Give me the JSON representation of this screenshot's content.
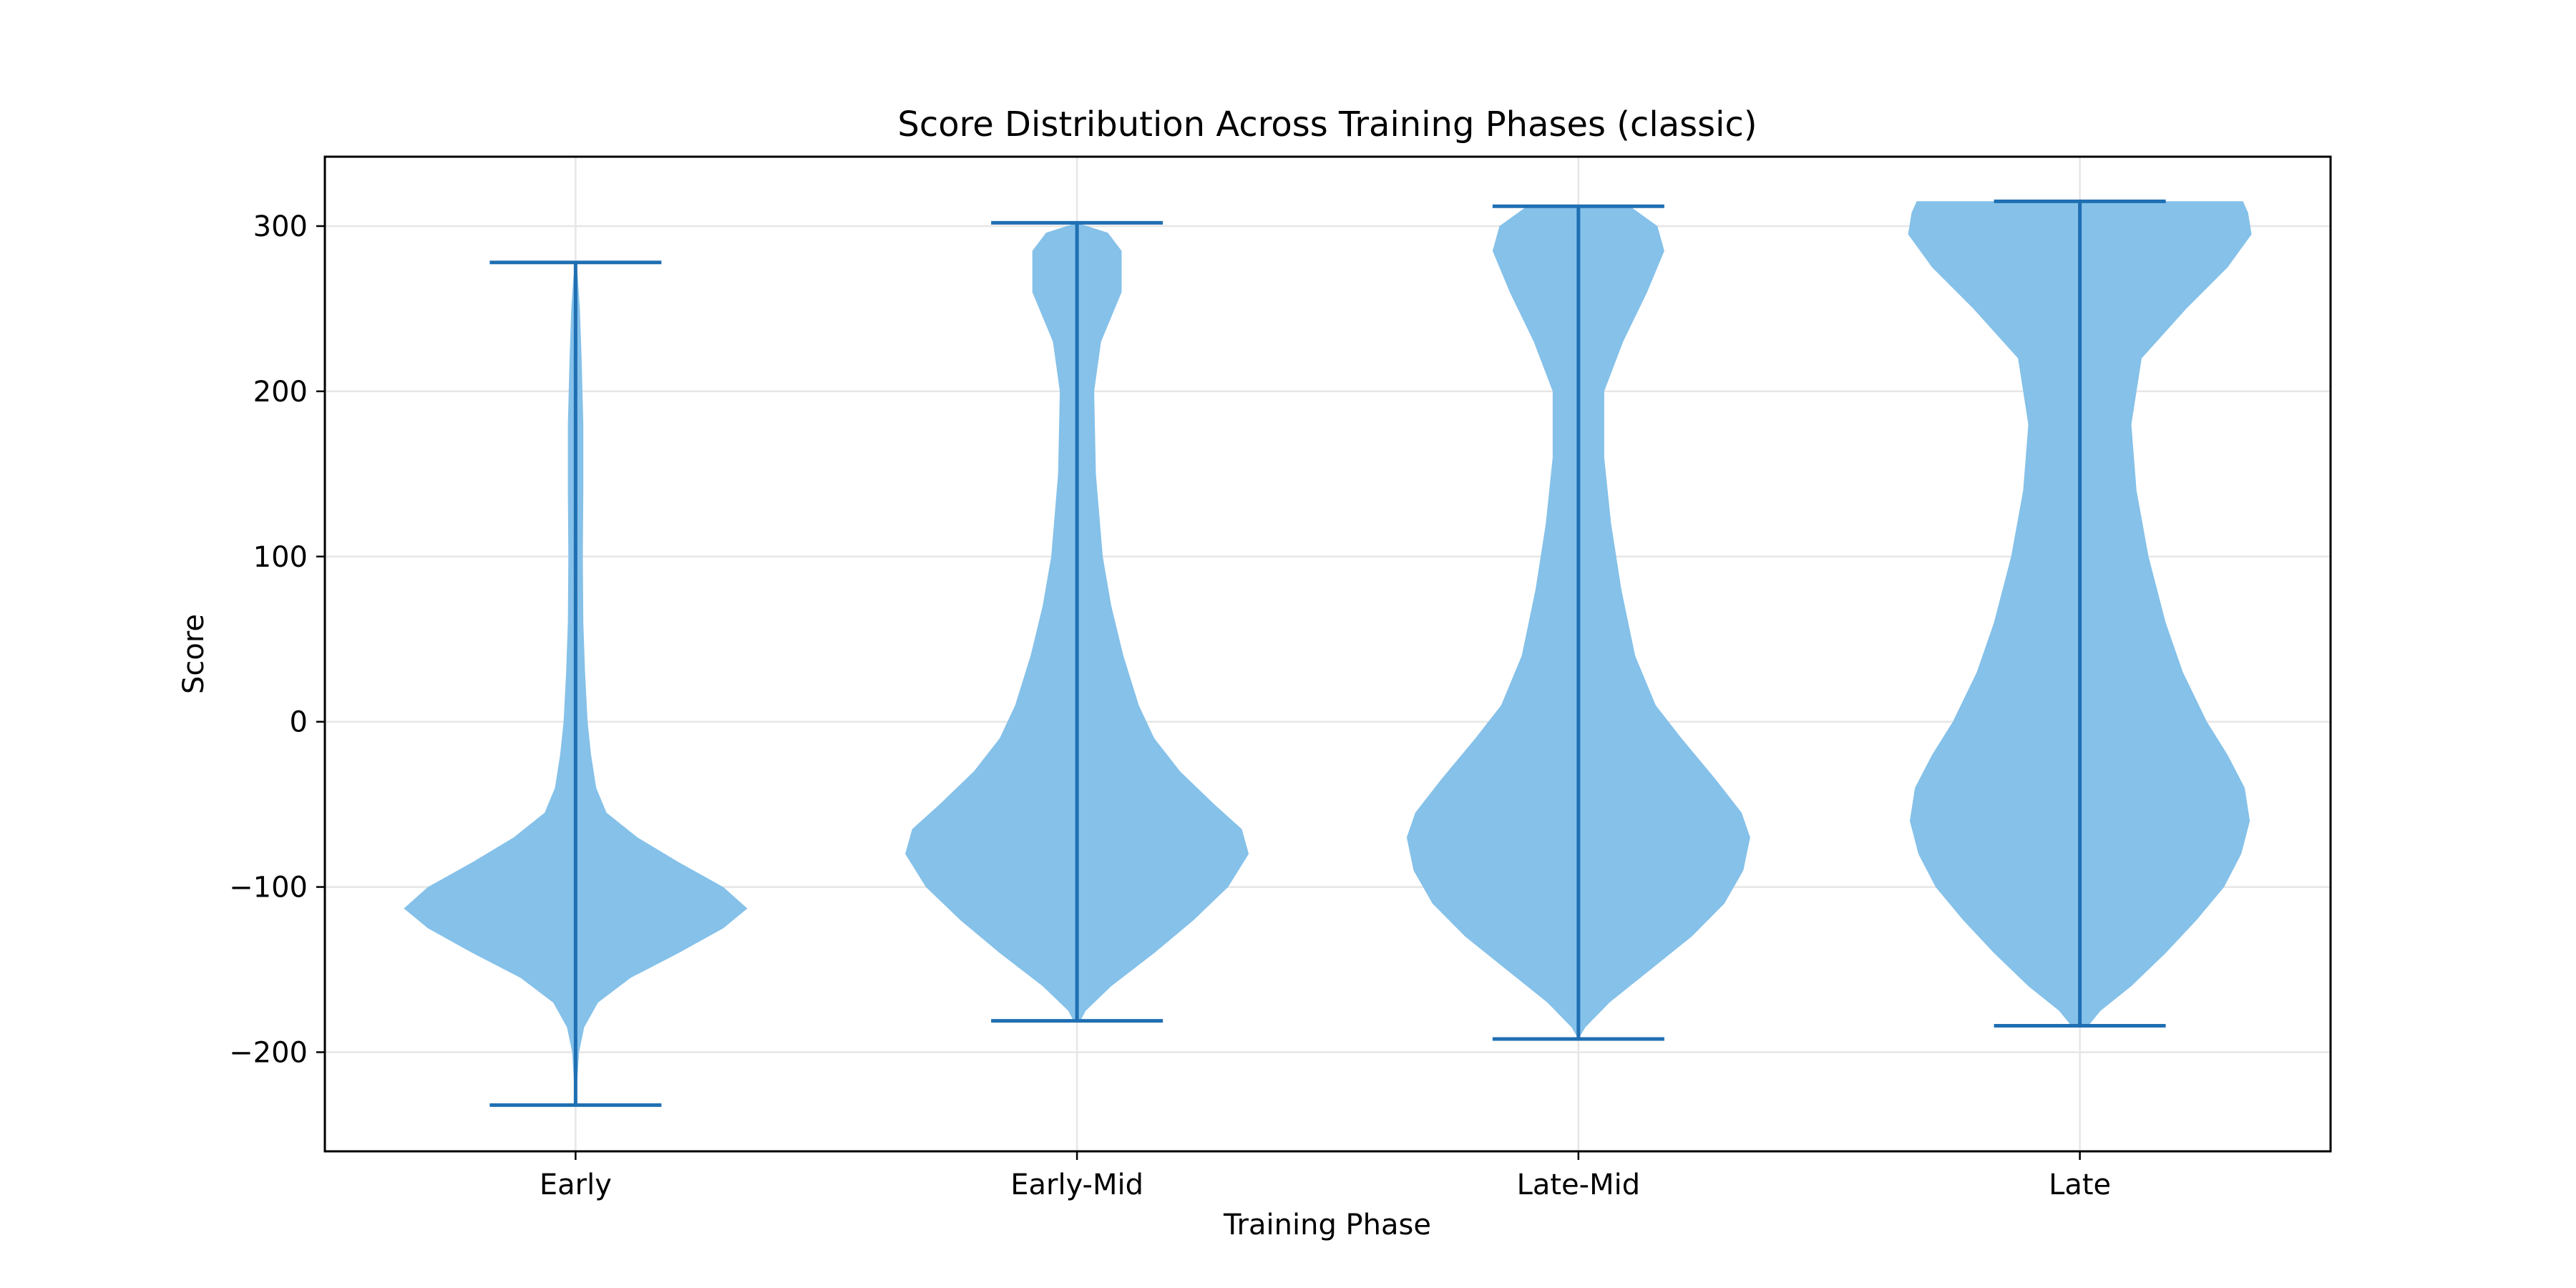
{
  "chart_data": {
    "type": "violin",
    "title": "Score Distribution Across Training Phases (classic)",
    "xlabel": "Training Phase",
    "ylabel": "Score",
    "ylim": [
      -260,
      342
    ],
    "yticks": [
      -200,
      -100,
      0,
      100,
      200,
      300
    ],
    "ytick_labels": [
      "−200",
      "−100",
      "0",
      "100",
      "200",
      "300"
    ],
    "grid": true,
    "categories": [
      "Early",
      "Early-Mid",
      "Late-Mid",
      "Late"
    ],
    "colors": {
      "body": "#85c1e9",
      "line": "#1f6fb2"
    },
    "series": [
      {
        "category": "Early",
        "min": -232,
        "max": 278,
        "profile": [
          [
            -232,
            0.0
          ],
          [
            -220,
            0.008
          ],
          [
            -200,
            0.02
          ],
          [
            -185,
            0.05
          ],
          [
            -170,
            0.13
          ],
          [
            -155,
            0.32
          ],
          [
            -140,
            0.6
          ],
          [
            -125,
            0.86
          ],
          [
            -113,
            1.0
          ],
          [
            -100,
            0.86
          ],
          [
            -85,
            0.6
          ],
          [
            -70,
            0.36
          ],
          [
            -55,
            0.18
          ],
          [
            -40,
            0.12
          ],
          [
            -20,
            0.09
          ],
          [
            0,
            0.07
          ],
          [
            30,
            0.055
          ],
          [
            60,
            0.045
          ],
          [
            100,
            0.042
          ],
          [
            140,
            0.045
          ],
          [
            180,
            0.045
          ],
          [
            220,
            0.035
          ],
          [
            250,
            0.025
          ],
          [
            270,
            0.012
          ],
          [
            278,
            0.0
          ]
        ]
      },
      {
        "category": "Early-Mid",
        "min": -181,
        "max": 302,
        "profile": [
          [
            -181,
            0.02
          ],
          [
            -175,
            0.05
          ],
          [
            -160,
            0.2
          ],
          [
            -140,
            0.45
          ],
          [
            -120,
            0.68
          ],
          [
            -100,
            0.88
          ],
          [
            -80,
            1.0
          ],
          [
            -65,
            0.96
          ],
          [
            -50,
            0.8
          ],
          [
            -30,
            0.6
          ],
          [
            -10,
            0.45
          ],
          [
            10,
            0.36
          ],
          [
            40,
            0.27
          ],
          [
            70,
            0.2
          ],
          [
            100,
            0.15
          ],
          [
            150,
            0.11
          ],
          [
            200,
            0.1
          ],
          [
            230,
            0.14
          ],
          [
            260,
            0.26
          ],
          [
            285,
            0.26
          ],
          [
            296,
            0.18
          ],
          [
            302,
            0.0
          ]
        ]
      },
      {
        "category": "Late-Mid",
        "min": -192,
        "max": 312,
        "profile": [
          [
            -192,
            0.0
          ],
          [
            -185,
            0.04
          ],
          [
            -170,
            0.18
          ],
          [
            -150,
            0.42
          ],
          [
            -130,
            0.66
          ],
          [
            -110,
            0.85
          ],
          [
            -90,
            0.96
          ],
          [
            -70,
            1.0
          ],
          [
            -55,
            0.95
          ],
          [
            -35,
            0.8
          ],
          [
            -10,
            0.6
          ],
          [
            10,
            0.45
          ],
          [
            40,
            0.33
          ],
          [
            80,
            0.25
          ],
          [
            120,
            0.19
          ],
          [
            160,
            0.15
          ],
          [
            200,
            0.15
          ],
          [
            230,
            0.26
          ],
          [
            260,
            0.4
          ],
          [
            285,
            0.5
          ],
          [
            300,
            0.46
          ],
          [
            312,
            0.3
          ]
        ]
      },
      {
        "category": "Late",
        "min": -184,
        "max": 315,
        "profile": [
          [
            -184,
            0.05
          ],
          [
            -175,
            0.12
          ],
          [
            -160,
            0.3
          ],
          [
            -140,
            0.5
          ],
          [
            -120,
            0.68
          ],
          [
            -100,
            0.84
          ],
          [
            -80,
            0.94
          ],
          [
            -60,
            0.99
          ],
          [
            -40,
            0.96
          ],
          [
            -20,
            0.86
          ],
          [
            0,
            0.74
          ],
          [
            30,
            0.6
          ],
          [
            60,
            0.5
          ],
          [
            100,
            0.4
          ],
          [
            140,
            0.33
          ],
          [
            180,
            0.3
          ],
          [
            220,
            0.36
          ],
          [
            250,
            0.62
          ],
          [
            275,
            0.86
          ],
          [
            295,
            1.0
          ],
          [
            308,
            0.98
          ],
          [
            315,
            0.95
          ]
        ]
      }
    ]
  }
}
